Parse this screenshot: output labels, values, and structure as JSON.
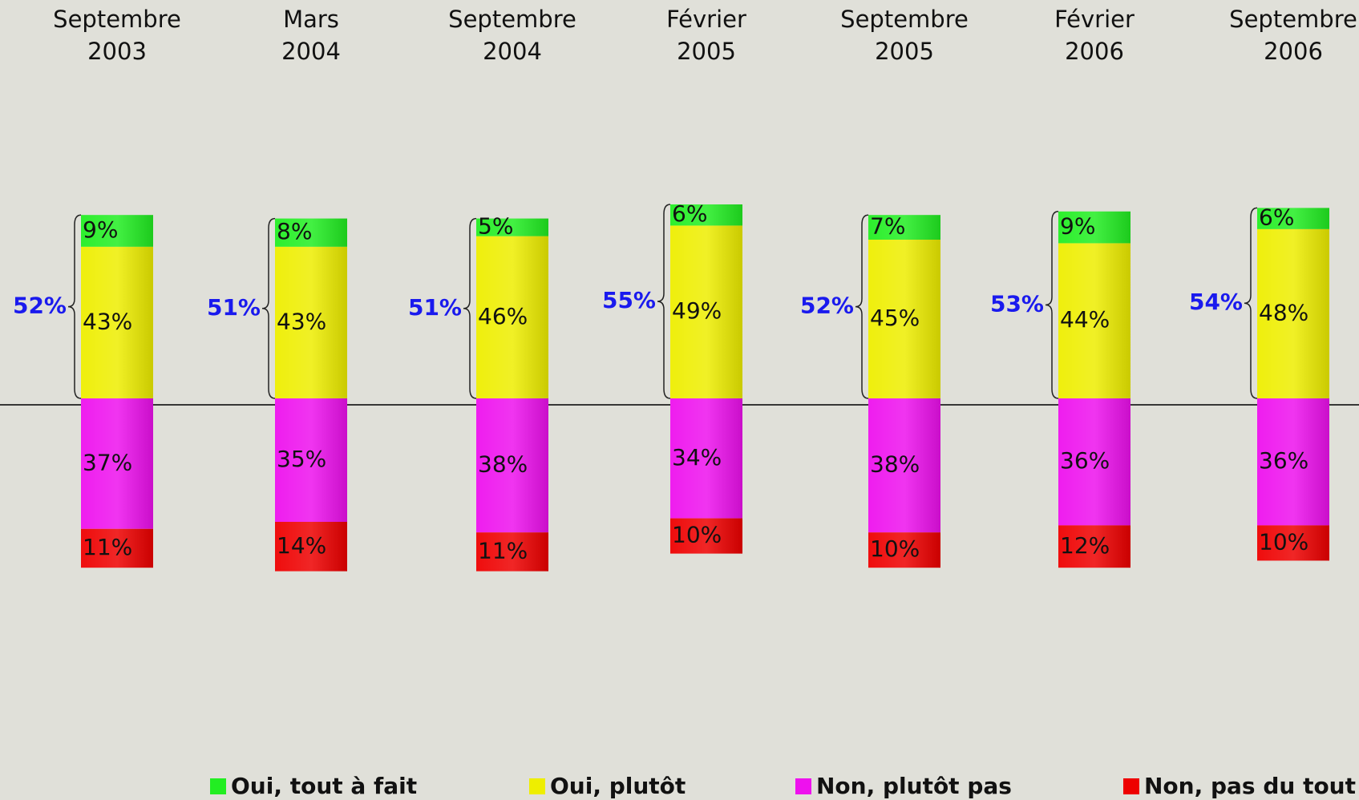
{
  "chart_data": {
    "type": "bar",
    "categories": [
      [
        "Septembre",
        "2003"
      ],
      [
        "Mars",
        "2004"
      ],
      [
        "Septembre",
        "2004"
      ],
      [
        "Février",
        "2005"
      ],
      [
        "Septembre",
        "2005"
      ],
      [
        "Février",
        "2006"
      ],
      [
        "Septembre",
        "2006"
      ]
    ],
    "series": [
      {
        "name": "Oui, tout à fait",
        "color": "#22ee22",
        "values": [
          9,
          8,
          5,
          6,
          7,
          9,
          6
        ],
        "value_labels": [
          "9%",
          "8%",
          "5%",
          "6%",
          "7%",
          "9%",
          "6%"
        ]
      },
      {
        "name": "Oui, plutôt",
        "color": "#eeee00",
        "values": [
          43,
          43,
          46,
          49,
          45,
          44,
          48
        ],
        "value_labels": [
          "43%",
          "43%",
          "46%",
          "49%",
          "45%",
          "44%",
          "48%"
        ]
      },
      {
        "name": "Non, plutôt pas",
        "color": "#ee11ee",
        "values": [
          37,
          35,
          38,
          34,
          38,
          36,
          36
        ],
        "value_labels": [
          "37%",
          "35%",
          "38%",
          "34%",
          "38%",
          "36%",
          "36%"
        ]
      },
      {
        "name": "Non, pas du tout",
        "color": "#ee0000",
        "values": [
          11,
          14,
          11,
          10,
          10,
          12,
          10
        ],
        "value_labels": [
          "11%",
          "14%",
          "11%",
          "10%",
          "10%",
          "12%",
          "10%"
        ]
      }
    ],
    "totals": {
      "values": [
        52,
        51,
        51,
        55,
        52,
        53,
        54
      ],
      "value_labels": [
        "52%",
        "51%",
        "51%",
        "55%",
        "52%",
        "53%",
        "54%"
      ]
    }
  }
}
